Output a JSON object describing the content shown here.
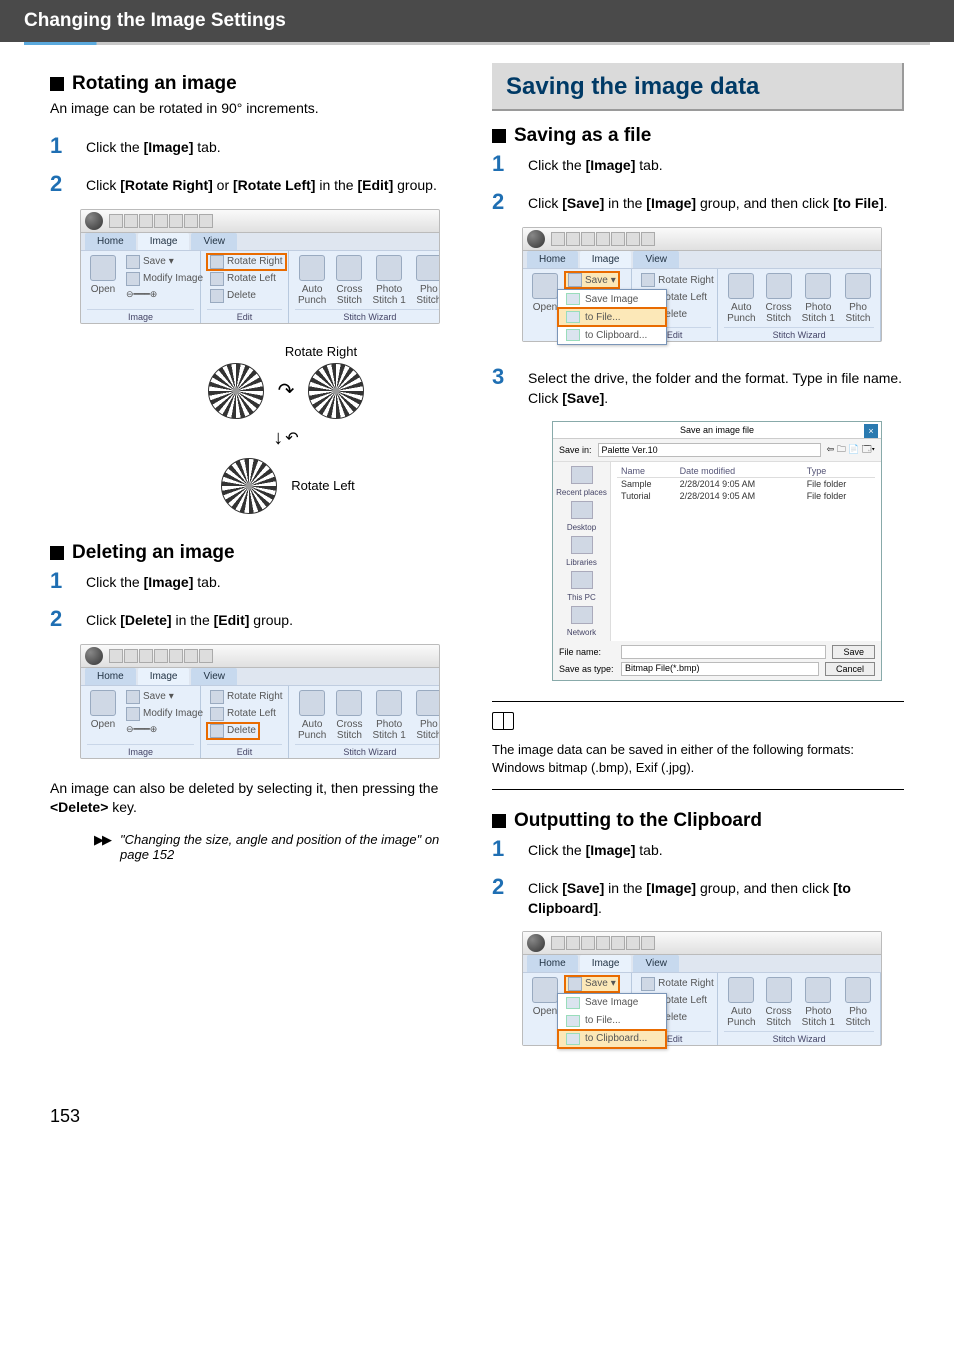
{
  "header": {
    "title": "Changing the Image Settings"
  },
  "left": {
    "rotating": {
      "heading": "Rotating an image",
      "intro": "An image can be rotated in 90° increments.",
      "steps": [
        {
          "n": "1",
          "html": "Click the <b>[Image]</b> tab."
        },
        {
          "n": "2",
          "html": "Click <b>[Rotate Right]</b> or <b>[Rotate Left]</b> in the <b>[Edit]</b> group."
        }
      ],
      "demo": {
        "right": "Rotate Right",
        "left": "Rotate Left"
      }
    },
    "deleting": {
      "heading": "Deleting an image",
      "steps": [
        {
          "n": "1",
          "html": "Click the <b>[Image]</b> tab."
        },
        {
          "n": "2",
          "html": "Click <b>[Delete]</b> in the <b>[Edit]</b> group."
        }
      ],
      "after": "An image can also be deleted by selecting it, then pressing the <b>&lt;Delete&gt;</b> key.",
      "xref": "\"Changing the size, angle and position of the image\" on page 152"
    },
    "ribbon": {
      "tabs": [
        "Home",
        "Image",
        "View"
      ],
      "imageGroup": "Image",
      "editGroup": "Edit",
      "stitchGroup": "Stitch Wizard",
      "open": "Open",
      "save": "Save",
      "saveImage": "Save Image",
      "modify": "Modify Image",
      "rotateRight": "Rotate Right",
      "rotateLeft": "Rotate Left",
      "delete": "Delete",
      "auto": "Auto\nPunch",
      "cross": "Cross\nStitch",
      "photo1": "Photo\nStitch 1",
      "photo2": "Pho\nStitch",
      "toFile": "to File...",
      "toClipboard": "to Clipboard..."
    }
  },
  "right": {
    "main": "Saving the image data",
    "savingFile": {
      "heading": "Saving as a file",
      "steps": [
        {
          "n": "1",
          "html": "Click the <b>[Image]</b> tab."
        },
        {
          "n": "2",
          "html": "Click <b>[Save]</b> in the <b>[Image]</b> group, and then click <b>[to File]</b>."
        },
        {
          "n": "3",
          "html": "Select the drive, the folder and the format. Type in file name. Click <b>[Save]</b>."
        }
      ]
    },
    "saveDialog": {
      "title": "Save an image file",
      "saveInLabel": "Save in:",
      "saveInValue": "Palette Ver.10",
      "cols": [
        "Name",
        "Date modified",
        "Type"
      ],
      "rows": [
        [
          "Sample",
          "2/28/2014 9:05 AM",
          "File folder"
        ],
        [
          "Tutorial",
          "2/28/2014 9:05 AM",
          "File folder"
        ]
      ],
      "places": [
        "Recent places",
        "Desktop",
        "Libraries",
        "This PC",
        "Network"
      ],
      "fileNameLabel": "File name:",
      "saveTypeLabel": "Save as type:",
      "saveTypeValue": "Bitmap File(*.bmp)",
      "saveBtn": "Save",
      "cancelBtn": "Cancel"
    },
    "note": "The image data can be saved in either of the following formats: Windows bitmap (.bmp), Exif (.jpg).",
    "clipboard": {
      "heading": "Outputting to the Clipboard",
      "steps": [
        {
          "n": "1",
          "html": "Click the <b>[Image]</b> tab."
        },
        {
          "n": "2",
          "html": "Click <b>[Save]</b> in the <b>[Image]</b> group, and then click <b>[to Clipboard]</b>."
        }
      ]
    }
  },
  "pageNum": "153"
}
